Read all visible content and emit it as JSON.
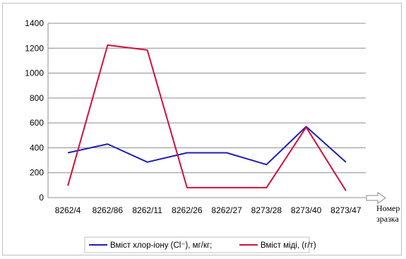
{
  "chart_data": {
    "type": "line",
    "categories": [
      "8262/4",
      "8262/86",
      "8262/11",
      "8262/26",
      "8262/27",
      "8273/28",
      "8273/40",
      "8273/47"
    ],
    "x_axis_note_line1": "Номер",
    "x_axis_note_line2": "зразка",
    "ylim": [
      0,
      1400
    ],
    "yticks": [
      0,
      200,
      400,
      600,
      800,
      1000,
      1200,
      1400
    ],
    "grid": true,
    "legend_position": "bottom",
    "series": [
      {
        "name": "Вміст хлор-іону (Cl⁻), мг/кг;",
        "color": "#1f1fb4",
        "values": [
          360,
          430,
          285,
          360,
          360,
          265,
          570,
          285
        ]
      },
      {
        "name": "Вміст міді, (г/т)",
        "color": "#d0103a",
        "values": [
          95,
          1225,
          1185,
          80,
          80,
          80,
          565,
          55
        ]
      }
    ]
  }
}
